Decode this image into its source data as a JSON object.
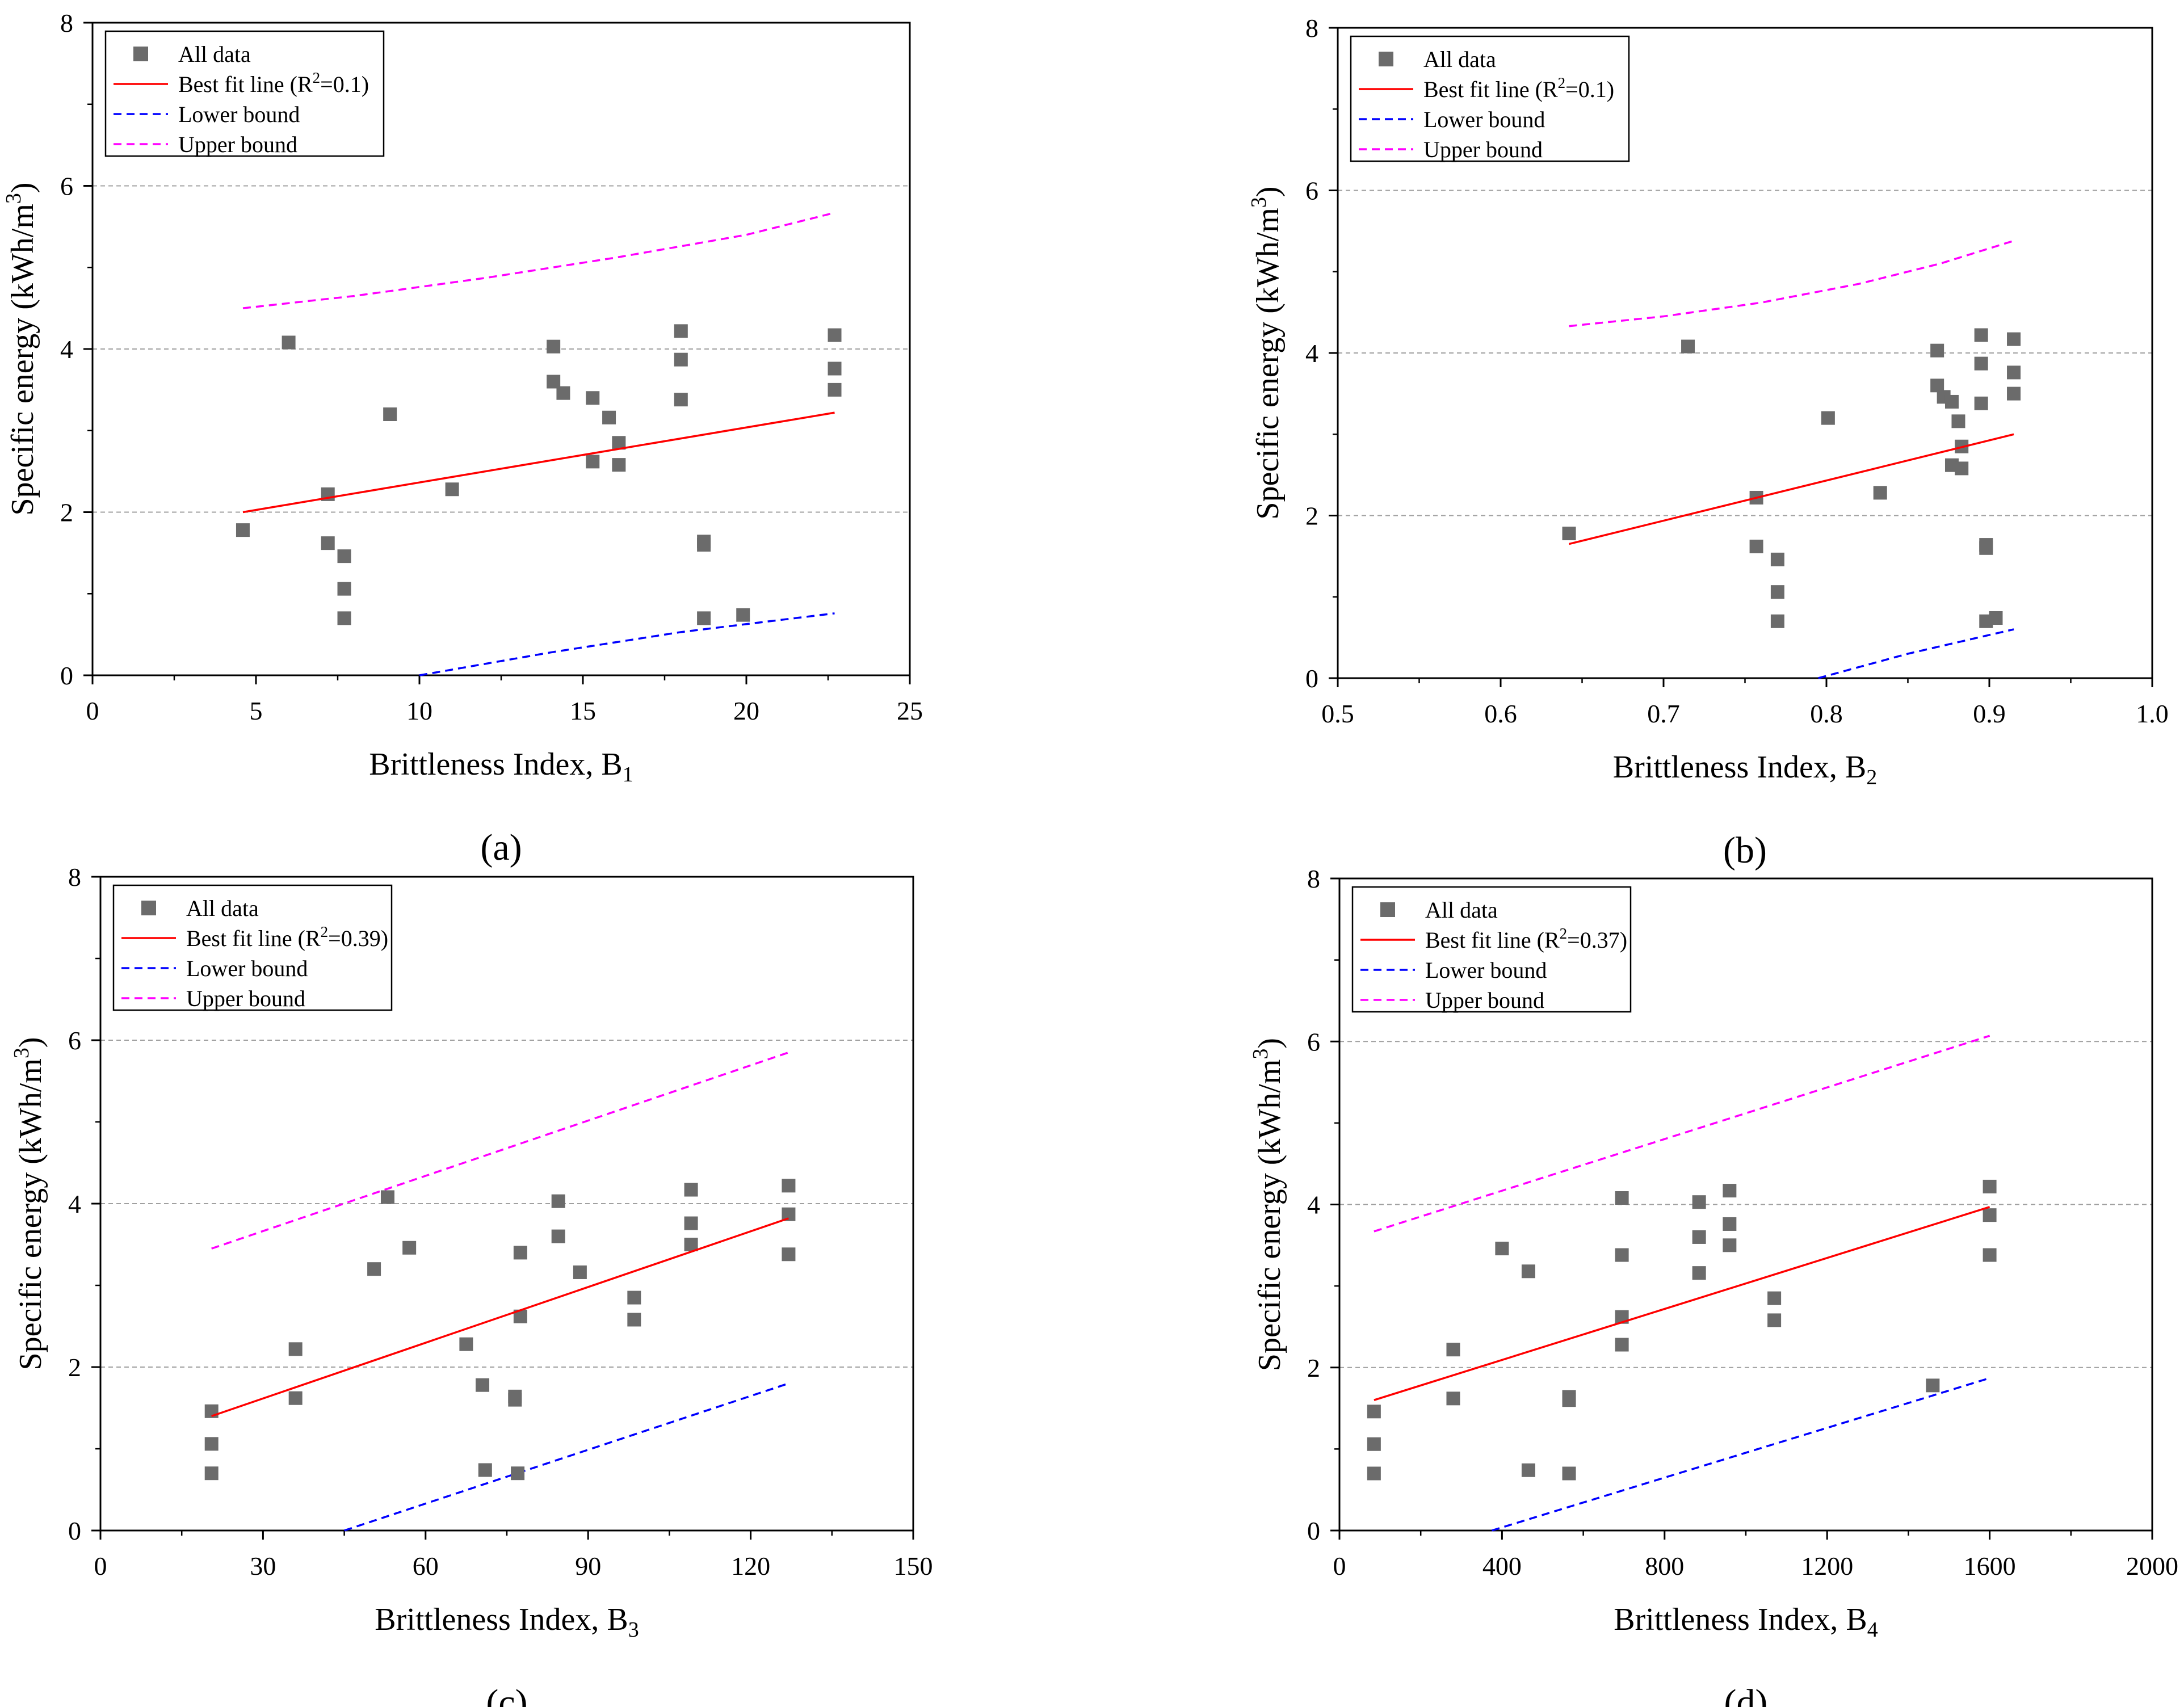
{
  "colors": {
    "points": "#6b6b6b",
    "best_fit": "#ff0000",
    "lower_bound": "#0000ff",
    "upper_bound": "#ff00ff",
    "grid": "#a0a0a0",
    "axis": "#000000"
  },
  "chart_data": [
    {
      "type": "scatter",
      "panel_label": "(a)",
      "panel_letter": "a",
      "xlabel": "Brittleness Index, B",
      "xlabel_sub": "1",
      "ylabel": "Specific energy (kWh/m",
      "ylabel_sup": "3",
      "ylabel_tail": ")",
      "xlim": [
        0,
        25
      ],
      "ylim": [
        0,
        8
      ],
      "xticks": [
        0,
        5,
        10,
        15,
        20,
        25
      ],
      "xtick_labels": [
        "0",
        "5",
        "10",
        "15",
        "20",
        "25"
      ],
      "yticks": [
        0,
        2,
        4,
        6,
        8
      ],
      "ytick_labels": [
        "0",
        "2",
        "4",
        "6",
        "8"
      ],
      "grid": "horizontal dashed",
      "legend_position": "top-left",
      "legend": {
        "all_data": "All data",
        "best_fit_prefix": "Best fit line (R",
        "best_fit_sup": "2",
        "best_fit_suffix": "=0.1)",
        "lower": "Lower bound",
        "upper": "Upper bound"
      },
      "points": [
        [
          4.6,
          1.78
        ],
        [
          6.0,
          4.08
        ],
        [
          7.2,
          2.22
        ],
        [
          7.2,
          1.62
        ],
        [
          7.7,
          1.46
        ],
        [
          7.7,
          1.06
        ],
        [
          7.7,
          0.7
        ],
        [
          9.1,
          3.2
        ],
        [
          11.0,
          2.28
        ],
        [
          14.1,
          4.03
        ],
        [
          14.1,
          3.6
        ],
        [
          14.4,
          3.46
        ],
        [
          15.3,
          3.4
        ],
        [
          15.3,
          2.62
        ],
        [
          15.8,
          3.16
        ],
        [
          16.1,
          2.85
        ],
        [
          16.1,
          2.58
        ],
        [
          18.0,
          4.22
        ],
        [
          18.0,
          3.87
        ],
        [
          18.0,
          3.38
        ],
        [
          18.7,
          1.64
        ],
        [
          18.7,
          1.6
        ],
        [
          18.7,
          0.7
        ],
        [
          19.9,
          0.74
        ],
        [
          22.7,
          4.17
        ],
        [
          22.7,
          3.76
        ],
        [
          22.7,
          3.5
        ]
      ],
      "best_fit_line": [
        [
          4.6,
          2.0
        ],
        [
          22.7,
          3.22
        ]
      ],
      "lower_bound_line": [
        [
          10.0,
          0.0
        ],
        [
          14.0,
          0.28
        ],
        [
          18.0,
          0.53
        ],
        [
          22.7,
          0.76
        ]
      ],
      "upper_bound_line": [
        [
          4.6,
          4.5
        ],
        [
          8.0,
          4.65
        ],
        [
          12.0,
          4.87
        ],
        [
          16.0,
          5.12
        ],
        [
          20.0,
          5.4
        ],
        [
          22.7,
          5.67
        ]
      ]
    },
    {
      "type": "scatter",
      "panel_label": "(b)",
      "panel_letter": "b",
      "xlabel": "Brittleness Index, B",
      "xlabel_sub": "2",
      "ylabel": "Specific energy (kWh/m",
      "ylabel_sup": "3",
      "ylabel_tail": ")",
      "xlim": [
        0.5,
        1.0
      ],
      "ylim": [
        0,
        8
      ],
      "xticks": [
        0.5,
        0.6,
        0.7,
        0.8,
        0.9,
        1.0
      ],
      "xtick_labels": [
        "0.5",
        "0.6",
        "0.7",
        "0.8",
        "0.9",
        "1.0"
      ],
      "yticks": [
        0,
        2,
        4,
        6,
        8
      ],
      "ytick_labels": [
        "0",
        "2",
        "4",
        "6",
        "8"
      ],
      "grid": "horizontal dashed",
      "legend_position": "top-left",
      "legend": {
        "all_data": "All data",
        "best_fit_prefix": "Best fit line (R",
        "best_fit_sup": "2",
        "best_fit_suffix": "=0.1)",
        "lower": "Lower bound",
        "upper": "Upper bound"
      },
      "points": [
        [
          0.642,
          1.78
        ],
        [
          0.715,
          4.08
        ],
        [
          0.757,
          2.22
        ],
        [
          0.757,
          1.62
        ],
        [
          0.77,
          1.46
        ],
        [
          0.77,
          1.06
        ],
        [
          0.77,
          0.7
        ],
        [
          0.801,
          3.2
        ],
        [
          0.833,
          2.28
        ],
        [
          0.868,
          4.03
        ],
        [
          0.868,
          3.6
        ],
        [
          0.872,
          3.46
        ],
        [
          0.877,
          3.4
        ],
        [
          0.877,
          2.62
        ],
        [
          0.881,
          3.16
        ],
        [
          0.883,
          2.85
        ],
        [
          0.883,
          2.58
        ],
        [
          0.895,
          4.22
        ],
        [
          0.895,
          3.87
        ],
        [
          0.895,
          3.38
        ],
        [
          0.898,
          1.64
        ],
        [
          0.898,
          1.6
        ],
        [
          0.898,
          0.7
        ],
        [
          0.904,
          0.74
        ],
        [
          0.915,
          4.17
        ],
        [
          0.915,
          3.76
        ],
        [
          0.915,
          3.5
        ]
      ],
      "best_fit_line": [
        [
          0.642,
          1.65
        ],
        [
          0.915,
          3.0
        ]
      ],
      "lower_bound_line": [
        [
          0.795,
          0.0
        ],
        [
          0.85,
          0.3
        ],
        [
          0.915,
          0.6
        ]
      ],
      "upper_bound_line": [
        [
          0.642,
          4.33
        ],
        [
          0.7,
          4.45
        ],
        [
          0.76,
          4.62
        ],
        [
          0.82,
          4.85
        ],
        [
          0.87,
          5.1
        ],
        [
          0.915,
          5.38
        ]
      ]
    },
    {
      "type": "scatter",
      "panel_label": "(c)",
      "panel_letter": "c",
      "xlabel": "Brittleness Index, B",
      "xlabel_sub": "3",
      "ylabel": "Specific energy (kWh/m",
      "ylabel_sup": "3",
      "ylabel_tail": ")",
      "xlim": [
        0,
        150
      ],
      "ylim": [
        0,
        8
      ],
      "xticks": [
        0,
        30,
        60,
        90,
        120,
        150
      ],
      "xtick_labels": [
        "0",
        "30",
        "60",
        "90",
        "120",
        "150"
      ],
      "yticks": [
        0,
        2,
        4,
        6,
        8
      ],
      "ytick_labels": [
        "0",
        "2",
        "4",
        "6",
        "8"
      ],
      "grid": "horizontal dashed",
      "legend_position": "top-left",
      "legend": {
        "all_data": "All data",
        "best_fit_prefix": "Best fit line (R",
        "best_fit_sup": "2",
        "best_fit_suffix": "=0.39)",
        "lower": "Lower bound",
        "upper": "Upper bound"
      },
      "points": [
        [
          20.5,
          1.46
        ],
        [
          20.5,
          1.06
        ],
        [
          20.5,
          0.7
        ],
        [
          36.0,
          2.22
        ],
        [
          36.0,
          1.62
        ],
        [
          50.5,
          3.2
        ],
        [
          53.0,
          4.08
        ],
        [
          57.0,
          3.46
        ],
        [
          67.5,
          2.28
        ],
        [
          70.5,
          1.78
        ],
        [
          71.0,
          0.74
        ],
        [
          76.5,
          1.64
        ],
        [
          76.5,
          1.6
        ],
        [
          77.0,
          0.7
        ],
        [
          77.5,
          3.4
        ],
        [
          77.5,
          2.62
        ],
        [
          84.5,
          4.03
        ],
        [
          84.5,
          3.6
        ],
        [
          88.5,
          3.16
        ],
        [
          98.5,
          2.85
        ],
        [
          98.5,
          2.58
        ],
        [
          109.0,
          4.17
        ],
        [
          109.0,
          3.76
        ],
        [
          109.0,
          3.5
        ],
        [
          127.0,
          4.22
        ],
        [
          127.0,
          3.87
        ],
        [
          127.0,
          3.38
        ]
      ],
      "best_fit_line": [
        [
          20.5,
          1.4
        ],
        [
          127.0,
          3.82
        ]
      ],
      "lower_bound_line": [
        [
          45.0,
          0.0
        ],
        [
          127.0,
          1.8
        ]
      ],
      "upper_bound_line": [
        [
          20.5,
          3.45
        ],
        [
          127.0,
          5.85
        ]
      ]
    },
    {
      "type": "scatter",
      "panel_label": "(d)",
      "panel_letter": "d",
      "xlabel": "Brittleness Index, B",
      "xlabel_sub": "4",
      "ylabel": "Specific energy (kWh/m",
      "ylabel_sup": "3",
      "ylabel_tail": ")",
      "xlim": [
        0,
        2000
      ],
      "ylim": [
        0,
        8
      ],
      "xticks": [
        0,
        400,
        800,
        1200,
        1600,
        2000
      ],
      "xtick_labels": [
        "0",
        "400",
        "800",
        "1200",
        "1600",
        "2000"
      ],
      "yticks": [
        0,
        2,
        4,
        6,
        8
      ],
      "ytick_labels": [
        "0",
        "2",
        "4",
        "6",
        "8"
      ],
      "grid": "horizontal dashed",
      "legend_position": "top-left",
      "legend": {
        "all_data": "All data",
        "best_fit_prefix": "Best fit line (R",
        "best_fit_sup": "2",
        "best_fit_suffix": "=0.37)",
        "lower": "Lower bound",
        "upper": "Upper bound"
      },
      "points": [
        [
          85,
          1.46
        ],
        [
          85,
          1.06
        ],
        [
          85,
          0.7
        ],
        [
          280,
          2.22
        ],
        [
          280,
          1.62
        ],
        [
          400,
          3.46
        ],
        [
          465,
          3.18
        ],
        [
          465,
          0.74
        ],
        [
          565,
          1.64
        ],
        [
          565,
          1.6
        ],
        [
          565,
          0.7
        ],
        [
          695,
          4.08
        ],
        [
          695,
          3.38
        ],
        [
          695,
          2.62
        ],
        [
          695,
          2.28
        ],
        [
          885,
          4.03
        ],
        [
          885,
          3.6
        ],
        [
          885,
          3.16
        ],
        [
          960,
          4.17
        ],
        [
          960,
          3.76
        ],
        [
          960,
          3.5
        ],
        [
          1070,
          2.85
        ],
        [
          1070,
          2.58
        ],
        [
          1460,
          1.78
        ],
        [
          1600,
          4.22
        ],
        [
          1600,
          3.87
        ],
        [
          1600,
          3.38
        ]
      ],
      "best_fit_line": [
        [
          85,
          1.6
        ],
        [
          1600,
          3.97
        ]
      ],
      "lower_bound_line": [
        [
          375,
          0.0
        ],
        [
          1600,
          1.87
        ]
      ],
      "upper_bound_line": [
        [
          85,
          3.67
        ],
        [
          1600,
          6.07
        ]
      ]
    }
  ]
}
